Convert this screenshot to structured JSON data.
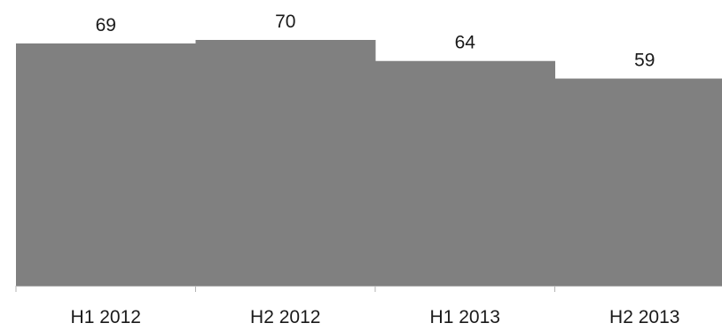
{
  "chart_data": {
    "type": "bar",
    "categories": [
      "H1 2012",
      "H2 2012",
      "H1 2013",
      "H2 2013"
    ],
    "values": [
      69,
      70,
      64,
      59
    ],
    "data_labels": [
      "69",
      "70",
      "64",
      "59"
    ],
    "title": "",
    "xlabel": "",
    "ylabel": "",
    "ylim": [
      0,
      70
    ],
    "grid": false,
    "legend": "none",
    "colors": {
      "bar": "#808080",
      "axis": "#b3b3b3",
      "text": "#1a1a1a"
    }
  }
}
